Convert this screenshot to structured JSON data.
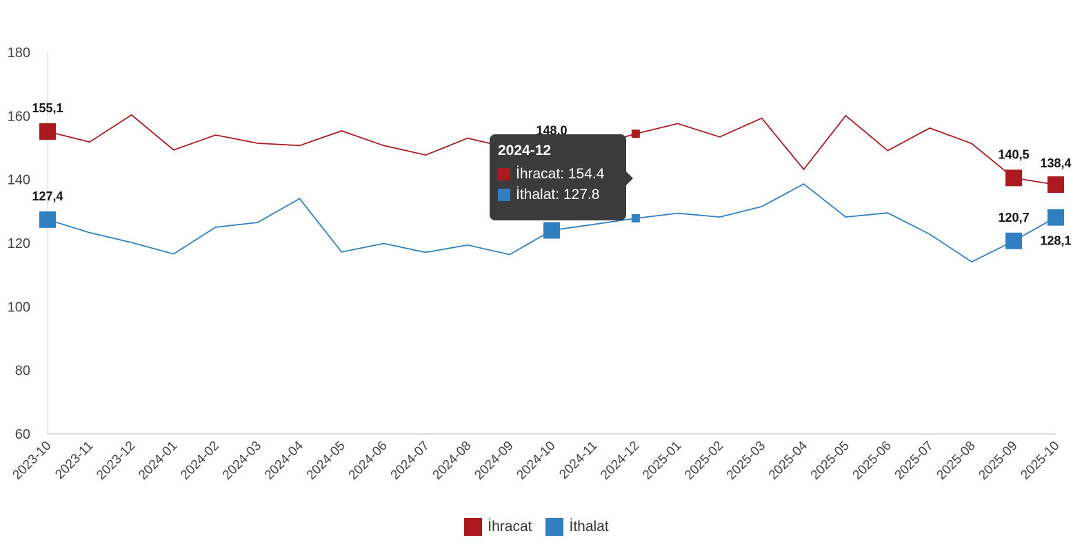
{
  "chart_data": {
    "type": "line",
    "categories": [
      "2023-10",
      "2023-11",
      "2023-12",
      "2024-01",
      "2024-02",
      "2024-03",
      "2024-04",
      "2024-05",
      "2024-06",
      "2024-07",
      "2024-08",
      "2024-09",
      "2024-10",
      "2024-11",
      "2024-12",
      "2025-01",
      "2025-02",
      "2025-03",
      "2025-04",
      "2025-05",
      "2025-06",
      "2025-07",
      "2025-08",
      "2025-09",
      "2025-10"
    ],
    "series": [
      {
        "name": "İhracat",
        "color": "#ab1a1f",
        "values": [
          155.1,
          151.8,
          160.3,
          149.3,
          154.0,
          151.4,
          150.7,
          155.3,
          150.7,
          147.7,
          153.0,
          149.9,
          148.0,
          150.7,
          154.4,
          157.6,
          153.4,
          159.3,
          143.2,
          160.1,
          149.1,
          156.2,
          151.3,
          140.5,
          138.4
        ]
      },
      {
        "name": "İthalat",
        "color": "#2f7fc1",
        "values": [
          127.4,
          123.3,
          120.2,
          116.6,
          125.0,
          126.5,
          134.0,
          117.2,
          119.9,
          117.1,
          119.4,
          116.4,
          124.0,
          125.9,
          127.8,
          129.4,
          128.2,
          131.5,
          138.6,
          128.2,
          129.5,
          122.8,
          114.1,
          120.7,
          128.1
        ]
      }
    ],
    "ylim": [
      60,
      180
    ],
    "yticks": [
      "60",
      "80",
      "100",
      "120",
      "140",
      "160",
      "180"
    ],
    "data_labels": [
      {
        "series": 0,
        "index": 0,
        "text": "155,1"
      },
      {
        "series": 0,
        "index": 12,
        "text": "148,0"
      },
      {
        "series": 0,
        "index": 23,
        "text": "140,5"
      },
      {
        "series": 0,
        "index": 24,
        "text": "138,4"
      },
      {
        "series": 1,
        "index": 0,
        "text": "127,4"
      },
      {
        "series": 1,
        "index": 12,
        "text": "124,0"
      },
      {
        "series": 1,
        "index": 23,
        "text": "120,7"
      },
      {
        "series": 1,
        "index": 24,
        "text": "128,1"
      }
    ],
    "grid": false,
    "legend_position": "bottom-center"
  },
  "legend": [
    {
      "label": "İhracat",
      "color": "#ab1a1f"
    },
    {
      "label": "İthalat",
      "color": "#2f7fc1"
    }
  ],
  "tooltip": {
    "title": "2024-12",
    "rows": [
      {
        "label": "İhracat: 154.4",
        "color": "#ab1a1f"
      },
      {
        "label": "İthalat: 127.8",
        "color": "#2f7fc1"
      }
    ]
  }
}
